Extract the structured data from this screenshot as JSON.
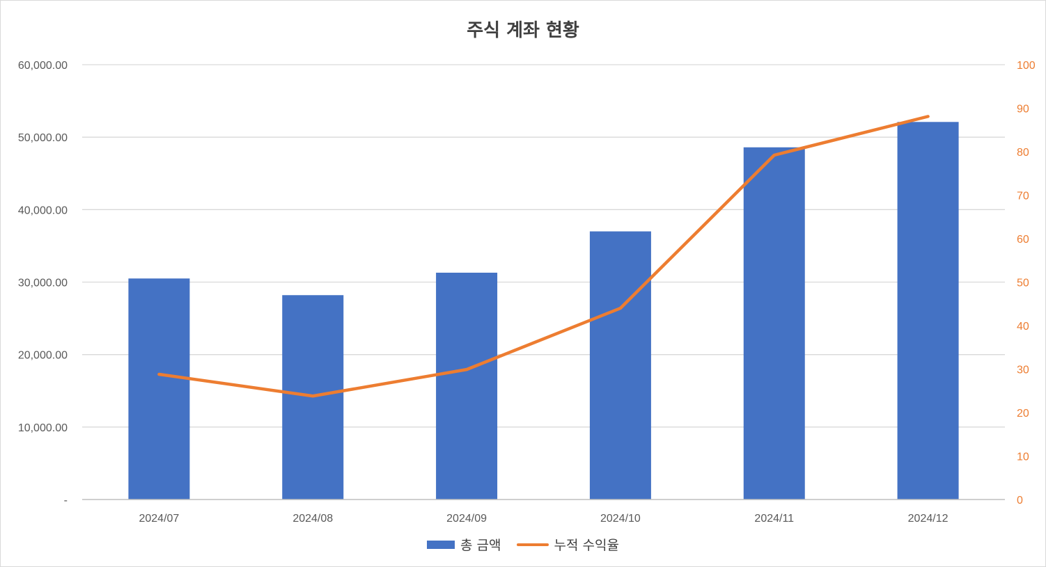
{
  "chart_data": {
    "type": "bar",
    "title": "주식 계좌 현황",
    "categories": [
      "2024/07",
      "2024/08",
      "2024/09",
      "2024/10",
      "2024/11",
      "2024/12"
    ],
    "series": [
      {
        "name": "총 금액",
        "type": "bar",
        "axis": "left",
        "color": "#4472C4",
        "values": [
          30500,
          28200,
          31300,
          37000,
          48600,
          52100
        ]
      },
      {
        "name": "누적 수익율",
        "type": "line",
        "axis": "right",
        "color": "#ED7D31",
        "values": [
          28.8,
          23.8,
          29.9,
          44.0,
          79.2,
          88.1
        ]
      }
    ],
    "y_left": {
      "ylim": [
        0,
        60000
      ],
      "ticks": [
        0,
        10000,
        20000,
        30000,
        40000,
        50000,
        60000
      ],
      "tick_labels": [
        "-",
        "10,000.00",
        "20,000.00",
        "30,000.00",
        "40,000.00",
        "50,000.00",
        "60,000.00"
      ]
    },
    "y_right": {
      "ylim": [
        0,
        100
      ],
      "ticks": [
        0,
        10,
        20,
        30,
        40,
        50,
        60,
        70,
        80,
        90,
        100
      ],
      "tick_labels": [
        "0",
        "10",
        "20",
        "30",
        "40",
        "50",
        "60",
        "70",
        "80",
        "90",
        "100"
      ],
      "color": "#ED7D31"
    },
    "grid": true,
    "legend_position": "bottom"
  }
}
